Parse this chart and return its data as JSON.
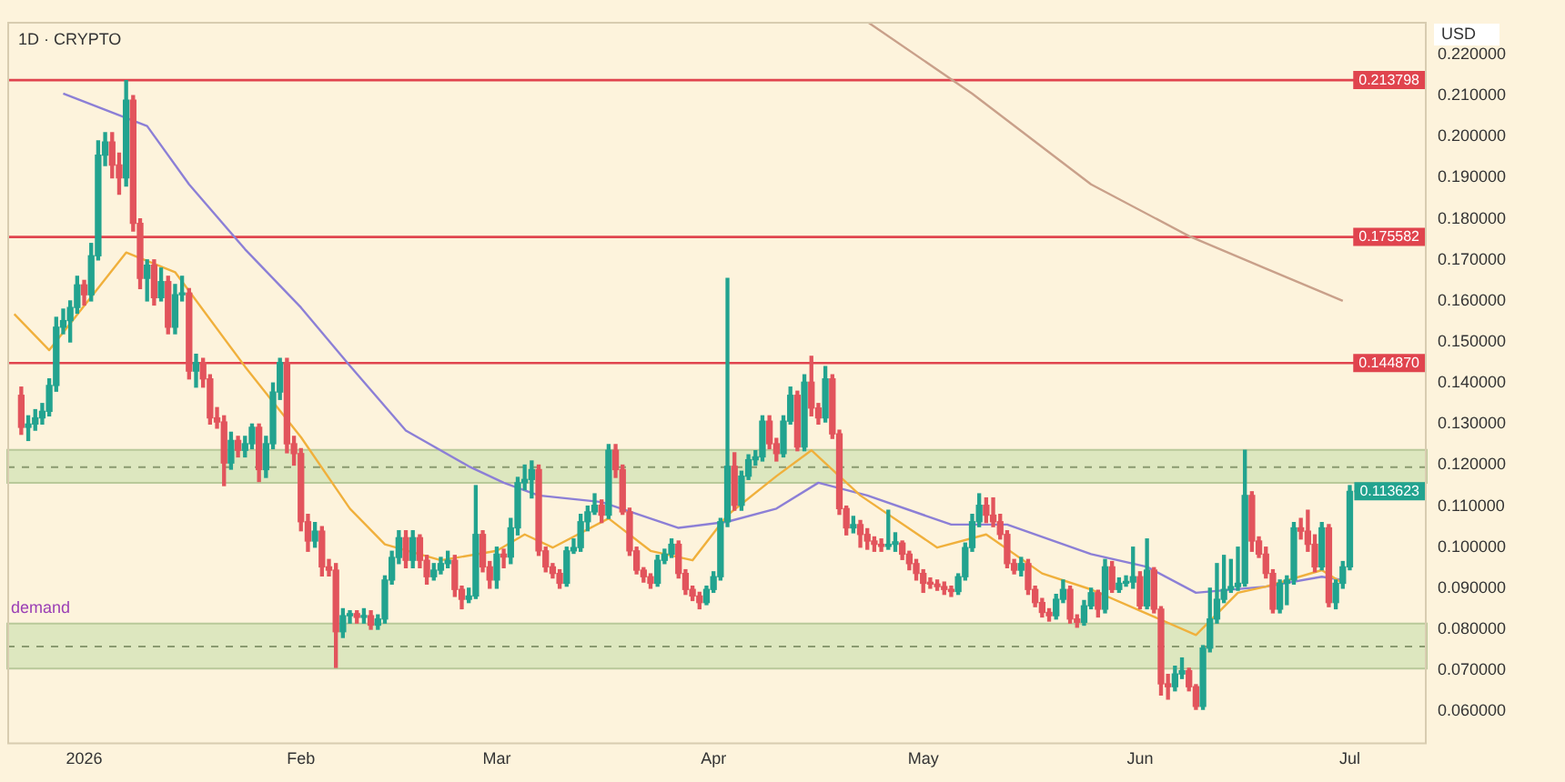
{
  "chart_data": {
    "type": "candlestick",
    "title": "1D · CRYPTO",
    "ylabel": "USD",
    "x": [
      "2025-12-23",
      "2025-12-24",
      "2025-12-25",
      "2025-12-26",
      "2025-12-27",
      "2025-12-28",
      "2025-12-29",
      "2025-12-30",
      "2025-12-31",
      "2026-01-01",
      "2026-01-02",
      "2026-01-03",
      "2026-01-04",
      "2026-01-05",
      "2026-01-06",
      "2026-01-07",
      "2026-01-08",
      "2026-01-09",
      "2026-01-10",
      "2026-01-11",
      "2026-01-12",
      "2026-01-13",
      "2026-01-14",
      "2026-01-15",
      "2026-01-16",
      "2026-01-17",
      "2026-01-18",
      "2026-01-19",
      "2026-01-20",
      "2026-01-21",
      "2026-01-22",
      "2026-01-23",
      "2026-01-24",
      "2026-01-25",
      "2026-01-26",
      "2026-01-27",
      "2026-01-28",
      "2026-01-29",
      "2026-01-30",
      "2026-01-31",
      "2026-02-01",
      "2026-02-02",
      "2026-02-03",
      "2026-02-04",
      "2026-02-05",
      "2026-02-06",
      "2026-02-07",
      "2026-02-08",
      "2026-02-09",
      "2026-02-10",
      "2026-02-11",
      "2026-02-12",
      "2026-02-13",
      "2026-02-14",
      "2026-02-15",
      "2026-02-16",
      "2026-02-17",
      "2026-02-18",
      "2026-02-19",
      "2026-02-20",
      "2026-02-21",
      "2026-02-22",
      "2026-02-23",
      "2026-02-24",
      "2026-02-25",
      "2026-02-26",
      "2026-02-27",
      "2026-02-28",
      "2026-03-01",
      "2026-03-02",
      "2026-03-03",
      "2026-03-04",
      "2026-03-05",
      "2026-03-06",
      "2026-03-07",
      "2026-03-08",
      "2026-03-09",
      "2026-03-10",
      "2026-03-11",
      "2026-03-12",
      "2026-03-13",
      "2026-03-14",
      "2026-03-15",
      "2026-03-16",
      "2026-03-17",
      "2026-03-18",
      "2026-03-19",
      "2026-03-20",
      "2026-03-21",
      "2026-03-22",
      "2026-03-23",
      "2026-03-24",
      "2026-03-25",
      "2026-03-26",
      "2026-03-27",
      "2026-03-28",
      "2026-03-29",
      "2026-03-30",
      "2026-03-31",
      "2026-04-01",
      "2026-04-02",
      "2026-04-03",
      "2026-04-04",
      "2026-04-05",
      "2026-04-06",
      "2026-04-07",
      "2026-04-08",
      "2026-04-09",
      "2026-04-10",
      "2026-04-11",
      "2026-04-12",
      "2026-04-13",
      "2026-04-14",
      "2026-04-15",
      "2026-04-16",
      "2026-04-17",
      "2026-04-18",
      "2026-04-19",
      "2026-04-20",
      "2026-04-21",
      "2026-04-22",
      "2026-04-23",
      "2026-04-24",
      "2026-04-25",
      "2026-04-26",
      "2026-04-27",
      "2026-04-28",
      "2026-04-29",
      "2026-04-30",
      "2026-05-01",
      "2026-05-02",
      "2026-05-03",
      "2026-05-04",
      "2026-05-05",
      "2026-05-06",
      "2026-05-07",
      "2026-05-08",
      "2026-05-09",
      "2026-05-10",
      "2026-05-11",
      "2026-05-12",
      "2026-05-13",
      "2026-05-14",
      "2026-05-15",
      "2026-05-16",
      "2026-05-17",
      "2026-05-18",
      "2026-05-19",
      "2026-05-20",
      "2026-05-21",
      "2026-05-22",
      "2026-05-23",
      "2026-05-24",
      "2026-05-25",
      "2026-05-26",
      "2026-05-27",
      "2026-05-28",
      "2026-05-29",
      "2026-05-30",
      "2026-05-31",
      "2026-06-01",
      "2026-06-02",
      "2026-06-03",
      "2026-06-04",
      "2026-06-05",
      "2026-06-06",
      "2026-06-07",
      "2026-06-08",
      "2026-06-09",
      "2026-06-10",
      "2026-06-11",
      "2026-06-12",
      "2026-06-13",
      "2026-06-14",
      "2026-06-15",
      "2026-06-16",
      "2026-06-17",
      "2026-06-18",
      "2026-06-19",
      "2026-06-20",
      "2026-06-21",
      "2026-06-22",
      "2026-06-23",
      "2026-06-24",
      "2026-06-25",
      "2026-06-26",
      "2026-06-27",
      "2026-06-28",
      "2026-06-29",
      "2026-06-30",
      "2026-07-01"
    ],
    "ohlc": [
      [
        0.137,
        0.139,
        0.1275,
        0.1292
      ],
      [
        0.1292,
        0.132,
        0.126,
        0.13
      ],
      [
        0.13,
        0.1335,
        0.1285,
        0.1315
      ],
      [
        0.1315,
        0.135,
        0.13,
        0.1331
      ],
      [
        0.1331,
        0.141,
        0.132,
        0.1394
      ],
      [
        0.1394,
        0.156,
        0.138,
        0.1536
      ],
      [
        0.1536,
        0.158,
        0.152,
        0.1552
      ],
      [
        0.1552,
        0.16,
        0.15,
        0.1584
      ],
      [
        0.1584,
        0.166,
        0.157,
        0.1639
      ],
      [
        0.1639,
        0.165,
        0.159,
        0.1615
      ],
      [
        0.1615,
        0.174,
        0.16,
        0.171
      ],
      [
        0.171,
        0.199,
        0.17,
        0.1955
      ],
      [
        0.1955,
        0.201,
        0.193,
        0.1987
      ],
      [
        0.1987,
        0.201,
        0.19,
        0.1931
      ],
      [
        0.1931,
        0.196,
        0.186,
        0.19
      ],
      [
        0.19,
        0.2137,
        0.188,
        0.2089
      ],
      [
        0.2089,
        0.21,
        0.177,
        0.1789
      ],
      [
        0.1789,
        0.18,
        0.163,
        0.1655
      ],
      [
        0.1655,
        0.17,
        0.16,
        0.1687
      ],
      [
        0.1687,
        0.17,
        0.159,
        0.1608
      ],
      [
        0.1608,
        0.168,
        0.16,
        0.1647
      ],
      [
        0.1647,
        0.166,
        0.152,
        0.1536
      ],
      [
        0.1536,
        0.164,
        0.152,
        0.1615
      ],
      [
        0.1615,
        0.166,
        0.16,
        0.1619
      ],
      [
        0.1619,
        0.163,
        0.141,
        0.1429
      ],
      [
        0.1429,
        0.147,
        0.139,
        0.145
      ],
      [
        0.145,
        0.146,
        0.139,
        0.141
      ],
      [
        0.141,
        0.142,
        0.13,
        0.1315
      ],
      [
        0.1315,
        0.134,
        0.129,
        0.1305
      ],
      [
        0.1305,
        0.132,
        0.115,
        0.1205
      ],
      [
        0.1205,
        0.128,
        0.119,
        0.126
      ],
      [
        0.126,
        0.127,
        0.122,
        0.1236
      ],
      [
        0.1236,
        0.127,
        0.122,
        0.1252
      ],
      [
        0.1252,
        0.13,
        0.124,
        0.1292
      ],
      [
        0.1292,
        0.13,
        0.116,
        0.1189
      ],
      [
        0.1189,
        0.127,
        0.117,
        0.1252
      ],
      [
        0.1252,
        0.14,
        0.124,
        0.1378
      ],
      [
        0.1378,
        0.146,
        0.136,
        0.145
      ],
      [
        0.145,
        0.146,
        0.123,
        0.1252
      ],
      [
        0.1252,
        0.127,
        0.12,
        0.1228
      ],
      [
        0.1228,
        0.124,
        0.104,
        0.1062
      ],
      [
        0.1062,
        0.108,
        0.099,
        0.1015
      ],
      [
        0.1015,
        0.106,
        0.1,
        0.1039
      ],
      [
        0.1039,
        0.105,
        0.093,
        0.0952
      ],
      [
        0.0952,
        0.097,
        0.093,
        0.0944
      ],
      [
        0.0944,
        0.096,
        0.0707,
        0.0794
      ],
      [
        0.0794,
        0.085,
        0.078,
        0.0833
      ],
      [
        0.0833,
        0.0845,
        0.0815,
        0.0838
      ],
      [
        0.0838,
        0.0845,
        0.0815,
        0.0829
      ],
      [
        0.0829,
        0.085,
        0.0815,
        0.0833
      ],
      [
        0.0833,
        0.0845,
        0.08,
        0.081
      ],
      [
        0.081,
        0.0835,
        0.08,
        0.0825
      ],
      [
        0.0825,
        0.093,
        0.0815,
        0.092
      ],
      [
        0.092,
        0.099,
        0.091,
        0.0975
      ],
      [
        0.0975,
        0.104,
        0.096,
        0.1023
      ],
      [
        0.1023,
        0.104,
        0.095,
        0.0968
      ],
      [
        0.0968,
        0.104,
        0.095,
        0.1023
      ],
      [
        0.1023,
        0.103,
        0.095,
        0.0968
      ],
      [
        0.0968,
        0.098,
        0.091,
        0.0928
      ],
      [
        0.0928,
        0.096,
        0.092,
        0.0944
      ],
      [
        0.0944,
        0.0975,
        0.0935,
        0.096
      ],
      [
        0.096,
        0.099,
        0.095,
        0.0968
      ],
      [
        0.0968,
        0.098,
        0.088,
        0.0897
      ],
      [
        0.0897,
        0.0905,
        0.085,
        0.0873
      ],
      [
        0.0873,
        0.09,
        0.0865,
        0.0881
      ],
      [
        0.0881,
        0.115,
        0.0875,
        0.1031
      ],
      [
        0.1031,
        0.104,
        0.094,
        0.0952
      ],
      [
        0.0952,
        0.0965,
        0.09,
        0.092
      ],
      [
        0.092,
        0.1,
        0.09,
        0.0983
      ],
      [
        0.0983,
        0.0995,
        0.095,
        0.0976
      ],
      [
        0.0976,
        0.107,
        0.096,
        0.1047
      ],
      [
        0.1047,
        0.117,
        0.103,
        0.1157
      ],
      [
        0.1157,
        0.12,
        0.114,
        0.1165
      ],
      [
        0.1165,
        0.121,
        0.112,
        0.1189
      ],
      [
        0.1189,
        0.12,
        0.098,
        0.0991
      ],
      [
        0.0991,
        0.1,
        0.094,
        0.0952
      ],
      [
        0.0952,
        0.096,
        0.0925,
        0.0936
      ],
      [
        0.0936,
        0.0945,
        0.09,
        0.0912
      ],
      [
        0.0912,
        0.1,
        0.0905,
        0.0991
      ],
      [
        0.0991,
        0.102,
        0.0985,
        0.0999
      ],
      [
        0.0999,
        0.108,
        0.099,
        0.1062
      ],
      [
        0.1062,
        0.11,
        0.104,
        0.1086
      ],
      [
        0.1086,
        0.113,
        0.108,
        0.1102
      ],
      [
        0.1102,
        0.1115,
        0.106,
        0.1078
      ],
      [
        0.1078,
        0.125,
        0.107,
        0.1236
      ],
      [
        0.1236,
        0.125,
        0.117,
        0.1189
      ],
      [
        0.1189,
        0.12,
        0.108,
        0.1086
      ],
      [
        0.1086,
        0.1095,
        0.098,
        0.0991
      ],
      [
        0.0991,
        0.1,
        0.0935,
        0.0944
      ],
      [
        0.0944,
        0.095,
        0.0915,
        0.0928
      ],
      [
        0.0928,
        0.0935,
        0.09,
        0.0912
      ],
      [
        0.0912,
        0.098,
        0.0905,
        0.0968
      ],
      [
        0.0968,
        0.0995,
        0.096,
        0.0983
      ],
      [
        0.0983,
        0.102,
        0.0975,
        0.1007
      ],
      [
        0.1007,
        0.1015,
        0.0925,
        0.0936
      ],
      [
        0.0936,
        0.0945,
        0.0885,
        0.0897
      ],
      [
        0.0897,
        0.0905,
        0.087,
        0.0881
      ],
      [
        0.0881,
        0.089,
        0.085,
        0.0865
      ],
      [
        0.0865,
        0.0905,
        0.086,
        0.0897
      ],
      [
        0.0897,
        0.094,
        0.089,
        0.0928
      ],
      [
        0.0928,
        0.107,
        0.092,
        0.1062
      ],
      [
        0.1062,
        0.1655,
        0.105,
        0.1197
      ],
      [
        0.1197,
        0.123,
        0.109,
        0.1102
      ],
      [
        0.1102,
        0.1185,
        0.109,
        0.1173
      ],
      [
        0.1173,
        0.1225,
        0.1165,
        0.1213
      ],
      [
        0.1213,
        0.1235,
        0.12,
        0.122
      ],
      [
        0.122,
        0.132,
        0.121,
        0.1307
      ],
      [
        0.1307,
        0.132,
        0.124,
        0.1252
      ],
      [
        0.1252,
        0.1265,
        0.121,
        0.1228
      ],
      [
        0.1228,
        0.132,
        0.122,
        0.1307
      ],
      [
        0.1307,
        0.139,
        0.13,
        0.137
      ],
      [
        0.137,
        0.138,
        0.1235,
        0.1244
      ],
      [
        0.1244,
        0.142,
        0.1235,
        0.1402
      ],
      [
        0.1402,
        0.1465,
        0.132,
        0.1339
      ],
      [
        0.1339,
        0.135,
        0.13,
        0.1315
      ],
      [
        0.1315,
        0.144,
        0.1305,
        0.141
      ],
      [
        0.141,
        0.142,
        0.1265,
        0.1276
      ],
      [
        0.1276,
        0.1285,
        0.108,
        0.1094
      ],
      [
        0.1094,
        0.11,
        0.103,
        0.1047
      ],
      [
        0.1047,
        0.1075,
        0.1035,
        0.1055
      ],
      [
        0.1055,
        0.1065,
        0.1,
        0.1031
      ],
      [
        0.1031,
        0.1045,
        0.0995,
        0.1015
      ],
      [
        0.1015,
        0.1025,
        0.099,
        0.1007
      ],
      [
        0.1007,
        0.102,
        0.099,
        0.1002
      ],
      [
        0.1002,
        0.109,
        0.0995,
        0.1007
      ],
      [
        0.1007,
        0.1035,
        0.099,
        0.1013
      ],
      [
        0.101,
        0.1015,
        0.097,
        0.0983
      ],
      [
        0.0983,
        0.099,
        0.0945,
        0.096
      ],
      [
        0.096,
        0.097,
        0.092,
        0.0936
      ],
      [
        0.0936,
        0.0945,
        0.089,
        0.0912
      ],
      [
        0.0912,
        0.0925,
        0.09,
        0.091
      ],
      [
        0.091,
        0.092,
        0.0895,
        0.0904
      ],
      [
        0.0904,
        0.0915,
        0.0885,
        0.0897
      ],
      [
        0.0897,
        0.0905,
        0.088,
        0.0892
      ],
      [
        0.0892,
        0.0935,
        0.0885,
        0.0928
      ],
      [
        0.0928,
        0.101,
        0.092,
        0.0999
      ],
      [
        0.0999,
        0.108,
        0.099,
        0.1062
      ],
      [
        0.1062,
        0.113,
        0.105,
        0.1102
      ],
      [
        0.1102,
        0.112,
        0.106,
        0.1078
      ],
      [
        0.1078,
        0.112,
        0.105,
        0.1062
      ],
      [
        0.1062,
        0.108,
        0.102,
        0.1031
      ],
      [
        0.1031,
        0.104,
        0.095,
        0.096
      ],
      [
        0.096,
        0.097,
        0.0935,
        0.0944
      ],
      [
        0.0944,
        0.0975,
        0.093,
        0.096
      ],
      [
        0.096,
        0.097,
        0.0885,
        0.0897
      ],
      [
        0.0897,
        0.0905,
        0.0855,
        0.0865
      ],
      [
        0.0865,
        0.0875,
        0.083,
        0.0841
      ],
      [
        0.0841,
        0.085,
        0.082,
        0.0833
      ],
      [
        0.0833,
        0.0885,
        0.0825,
        0.0873
      ],
      [
        0.0873,
        0.092,
        0.0865,
        0.0897
      ],
      [
        0.0897,
        0.0905,
        0.0815,
        0.0825
      ],
      [
        0.0825,
        0.0835,
        0.0805,
        0.0817
      ],
      [
        0.0817,
        0.087,
        0.081,
        0.0857
      ],
      [
        0.0857,
        0.09,
        0.085,
        0.0889
      ],
      [
        0.0889,
        0.0895,
        0.083,
        0.0849
      ],
      [
        0.0849,
        0.097,
        0.084,
        0.0952
      ],
      [
        0.0952,
        0.0965,
        0.089,
        0.0897
      ],
      [
        0.0897,
        0.0925,
        0.089,
        0.0912
      ],
      [
        0.0912,
        0.093,
        0.0905,
        0.0915
      ],
      [
        0.0915,
        0.1,
        0.09,
        0.0928
      ],
      [
        0.0928,
        0.094,
        0.085,
        0.0857
      ],
      [
        0.0857,
        0.102,
        0.085,
        0.0944
      ],
      [
        0.0944,
        0.095,
        0.084,
        0.0849
      ],
      [
        0.0849,
        0.0855,
        0.064,
        0.0667
      ],
      [
        0.0667,
        0.069,
        0.063,
        0.066
      ],
      [
        0.066,
        0.071,
        0.065,
        0.0691
      ],
      [
        0.0691,
        0.073,
        0.068,
        0.0699
      ],
      [
        0.0699,
        0.0705,
        0.065,
        0.066
      ],
      [
        0.066,
        0.0665,
        0.0605,
        0.0612
      ],
      [
        0.0612,
        0.076,
        0.0605,
        0.0754
      ],
      [
        0.0754,
        0.09,
        0.0745,
        0.0825
      ],
      [
        0.0825,
        0.096,
        0.0815,
        0.0873
      ],
      [
        0.0873,
        0.098,
        0.0865,
        0.0897
      ],
      [
        0.0897,
        0.097,
        0.089,
        0.0904
      ],
      [
        0.0904,
        0.1,
        0.0895,
        0.0912
      ],
      [
        0.0912,
        0.1236,
        0.0905,
        0.1126
      ],
      [
        0.1126,
        0.1135,
        0.099,
        0.1015
      ],
      [
        0.1015,
        0.1025,
        0.0975,
        0.0983
      ],
      [
        0.0983,
        0.1,
        0.0925,
        0.0936
      ],
      [
        0.0936,
        0.0945,
        0.084,
        0.0849
      ],
      [
        0.0849,
        0.092,
        0.084,
        0.0912
      ],
      [
        0.0912,
        0.093,
        0.086,
        0.092
      ],
      [
        0.092,
        0.106,
        0.091,
        0.1047
      ],
      [
        0.1047,
        0.107,
        0.102,
        0.1039
      ],
      [
        0.1039,
        0.109,
        0.099,
        0.1007
      ],
      [
        0.1007,
        0.103,
        0.094,
        0.0952
      ],
      [
        0.0952,
        0.106,
        0.0945,
        0.1047
      ],
      [
        0.1047,
        0.1055,
        0.0855,
        0.0865
      ],
      [
        0.0865,
        0.092,
        0.085,
        0.0912
      ],
      [
        0.0912,
        0.0965,
        0.09,
        0.0952
      ],
      [
        0.0952,
        0.115,
        0.0945,
        0.1136
      ]
    ],
    "series": [
      {
        "type": "line",
        "color": "#f0b03c",
        "x": [
          "2025-12-22",
          "2025-12-27",
          "2026-01-07",
          "2026-01-14",
          "2026-01-24",
          "2026-02-01",
          "2026-02-08",
          "2026-02-13",
          "2026-02-21",
          "2026-03-01",
          "2026-03-05",
          "2026-03-09",
          "2026-03-17",
          "2026-03-23",
          "2026-03-29",
          "2026-04-03",
          "2026-04-10",
          "2026-04-15",
          "2026-04-22",
          "2026-05-03",
          "2026-05-10",
          "2026-05-18",
          "2026-05-25",
          "2026-06-09",
          "2026-06-15",
          "2026-06-19",
          "2026-06-27",
          "2026-06-30"
        ],
        "values": [
          0.1568,
          0.148,
          0.1718,
          0.167,
          0.144,
          0.1268,
          0.1094,
          0.1007,
          0.0968,
          0.0991,
          0.1031,
          0.0999,
          0.107,
          0.0991,
          0.0968,
          0.1078,
          0.1173,
          0.1236,
          0.1126,
          0.0999,
          0.1031,
          0.0936,
          0.0897,
          0.0786,
          0.0889,
          0.0904,
          0.0944,
          0.0912
        ]
      },
      {
        "type": "line",
        "color": "#8c7fd6",
        "x": [
          "2025-12-29",
          "2026-01-10",
          "2026-01-16",
          "2026-01-24",
          "2026-02-01",
          "2026-02-08",
          "2026-02-16",
          "2026-02-25",
          "2026-03-02",
          "2026-03-07",
          "2026-03-16",
          "2026-03-27",
          "2026-04-03",
          "2026-04-10",
          "2026-04-16",
          "2026-04-23",
          "2026-05-05",
          "2026-05-13",
          "2026-05-25",
          "2026-06-02",
          "2026-06-09",
          "2026-06-19",
          "2026-06-27",
          "2026-06-30"
        ],
        "values": [
          0.2105,
          0.2026,
          0.1884,
          0.1726,
          0.1584,
          0.1442,
          0.1284,
          0.1197,
          0.1157,
          0.1126,
          0.111,
          0.1047,
          0.1062,
          0.1094,
          0.1157,
          0.1126,
          0.1055,
          0.1055,
          0.0983,
          0.0952,
          0.0889,
          0.0904,
          0.0928,
          0.092
        ]
      },
      {
        "type": "line",
        "color": "#c9a08a",
        "x": [
          "2026-04-23",
          "2026-05-08",
          "2026-05-25",
          "2026-06-08",
          "2026-06-19",
          "2026-06-30"
        ],
        "values": [
          0.228,
          0.2105,
          0.1884,
          0.1758,
          0.1679,
          0.16
        ]
      }
    ],
    "xlim": [
      "2025-12-21",
      "2026-07-12"
    ],
    "xticks": [
      {
        "value": "2026-01-01",
        "label": "2026"
      },
      {
        "value": "2026-02-01",
        "label": "Feb"
      },
      {
        "value": "2026-03-01",
        "label": "Mar"
      },
      {
        "value": "2026-04-01",
        "label": "Apr"
      },
      {
        "value": "2026-05-01",
        "label": "May"
      },
      {
        "value": "2026-06-01",
        "label": "Jun"
      },
      {
        "value": "2026-07-01",
        "label": "Jul"
      }
    ],
    "ylim": [
      0.052,
      0.228
    ],
    "yticks": [
      {
        "value": 0.06,
        "label": "0.060000"
      },
      {
        "value": 0.07,
        "label": "0.070000"
      },
      {
        "value": 0.08,
        "label": "0.080000"
      },
      {
        "value": 0.09,
        "label": "0.090000"
      },
      {
        "value": 0.1,
        "label": "0.100000"
      },
      {
        "value": 0.11,
        "label": "0.110000"
      },
      {
        "value": 0.12,
        "label": "0.120000"
      },
      {
        "value": 0.13,
        "label": "0.130000"
      },
      {
        "value": 0.14,
        "label": "0.140000"
      },
      {
        "value": 0.15,
        "label": "0.150000"
      },
      {
        "value": 0.16,
        "label": "0.160000"
      },
      {
        "value": 0.17,
        "label": "0.170000"
      },
      {
        "value": 0.18,
        "label": "0.180000"
      },
      {
        "value": 0.19,
        "label": "0.190000"
      },
      {
        "value": 0.2,
        "label": "0.200000"
      },
      {
        "value": 0.21,
        "label": "0.210000"
      },
      {
        "value": 0.22,
        "label": "0.220000"
      }
    ],
    "bands": [
      {
        "axis": "y",
        "from": 0.1157,
        "to": 0.1237,
        "color": "#d5e3b8"
      },
      {
        "axis": "y",
        "from": 0.0704,
        "to": 0.0814,
        "color": "#d5e3b8",
        "label": "demand"
      }
    ],
    "ref_lines": [
      {
        "axis": "y",
        "value": 0.213798,
        "label": "0.213798",
        "color": "#e0444e"
      },
      {
        "axis": "y",
        "value": 0.175582,
        "label": "0.175582",
        "color": "#e0444e"
      },
      {
        "axis": "y",
        "value": 0.14487,
        "label": "0.144870",
        "color": "#e0444e"
      },
      {
        "axis": "y",
        "value": 0.1195,
        "color": "#8a9a70",
        "line_style": "dashed"
      },
      {
        "axis": "y",
        "value": 0.0758,
        "color": "#8a9a70",
        "line_style": "dashed"
      }
    ],
    "annotations": [
      {
        "text": "0.113623",
        "x": "2026-07-01",
        "y": 0.113623
      }
    ]
  }
}
